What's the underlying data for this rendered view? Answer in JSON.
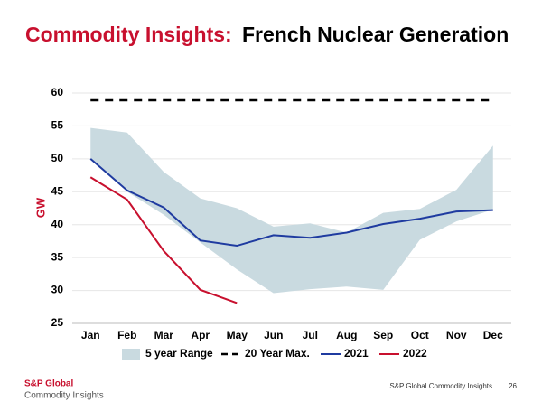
{
  "chart_data": {
    "type": "line",
    "title_prefix": "Commodity Insights:",
    "title": "French Nuclear Generation",
    "ylabel": "GW",
    "categories": [
      "Jan",
      "Feb",
      "Mar",
      "Apr",
      "May",
      "Jun",
      "Jul",
      "Aug",
      "Sep",
      "Oct",
      "Nov",
      "Dec"
    ],
    "ylim": [
      25,
      60
    ],
    "yticks": [
      25,
      30,
      35,
      40,
      45,
      50,
      55,
      60
    ],
    "grid": true,
    "legend": "bottom",
    "series": [
      {
        "name": "5 year Range",
        "color": "#c9dae0",
        "kind": "range",
        "values": [
          54.7,
          54,
          48,
          44,
          42.5,
          39.7,
          40.2,
          38.8,
          41.8,
          42.4,
          45.3,
          52
        ],
        "low": [
          50,
          45,
          41.5,
          37.3,
          33.2,
          29.6,
          30.2,
          30.6,
          30.1,
          37.7,
          40.5,
          42.3
        ]
      },
      {
        "name": "20 Year Max.",
        "color": "#000000",
        "kind": "dashed",
        "values": [
          58.9,
          58.9,
          58.9,
          58.9,
          58.9,
          58.9,
          58.9,
          58.9,
          58.9,
          58.9,
          58.9,
          58.9
        ]
      },
      {
        "name": "2021",
        "color": "#1f3ba0",
        "values": [
          50,
          45.2,
          42.6,
          37.6,
          36.8,
          38.4,
          38,
          38.8,
          40.1,
          40.9,
          42,
          42.2
        ]
      },
      {
        "name": "2022",
        "color": "#c8102e",
        "values": [
          47.2,
          43.8,
          36,
          30.1,
          28.1,
          null,
          null,
          null,
          null,
          null,
          null,
          null
        ]
      }
    ]
  },
  "footer": {
    "brand": "S&P Global",
    "brand_sub": "Commodity Insights",
    "source": "S&P Global Commodity Insights",
    "page": "26"
  }
}
